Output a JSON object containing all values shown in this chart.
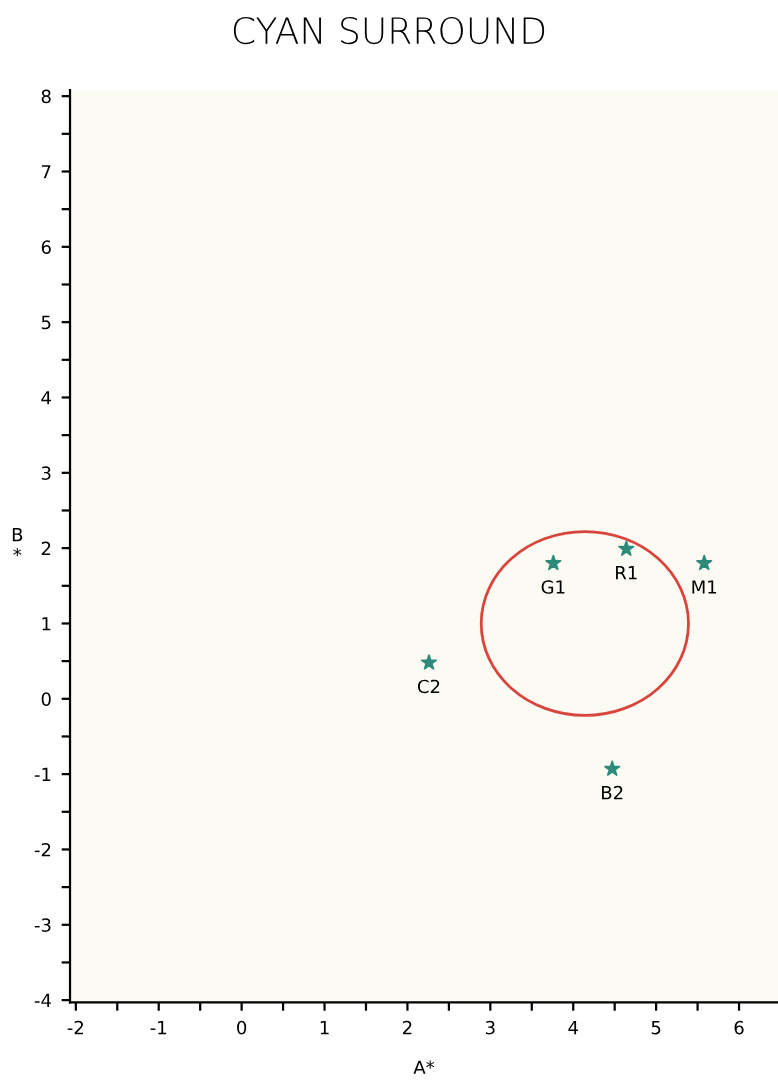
{
  "chart_data": {
    "type": "scatter",
    "title": "CYAN SURROUND",
    "xlabel": "A*",
    "ylabel": "B*",
    "xlim": [
      -2.07,
      6.47
    ],
    "ylim": [
      -4.03,
      8.08
    ],
    "xticks": [
      -2,
      {
        "value": -1.5,
        "label": null
      },
      -1,
      {
        "value": -0.5,
        "label": null
      },
      0,
      {
        "value": 0.5,
        "label": null
      },
      1,
      {
        "value": 1.5,
        "label": null
      },
      2,
      {
        "value": 2.5,
        "label": null
      },
      3,
      {
        "value": 3.5,
        "label": null
      },
      4,
      {
        "value": 4.5,
        "label": null
      },
      5,
      {
        "value": 5.5,
        "label": null
      },
      6
    ],
    "yticks": [
      -4,
      {
        "value": -3.5,
        "label": null
      },
      -3,
      {
        "value": -2.5,
        "label": null
      },
      -2,
      {
        "value": -1.5,
        "label": null
      },
      -1,
      {
        "value": -0.5,
        "label": null
      },
      0,
      {
        "value": 0.5,
        "label": null
      },
      1,
      {
        "value": 1.5,
        "label": null
      },
      2,
      {
        "value": 2.5,
        "label": null
      },
      3,
      {
        "value": 3.5,
        "label": null
      },
      4,
      {
        "value": 4.5,
        "label": null
      },
      5,
      {
        "value": 5.5,
        "label": null
      },
      6,
      {
        "value": 6.5,
        "label": null
      },
      7,
      {
        "value": 7.5,
        "label": null
      },
      8
    ],
    "grid": false,
    "legend": false,
    "marker": "star",
    "series": [
      {
        "color": "#2e8a7a",
        "x": [
          3.76,
          4.64,
          5.58,
          2.26,
          4.47
        ],
        "values": [
          1.8,
          1.99,
          1.8,
          0.48,
          -0.93
        ]
      }
    ],
    "annotations": [
      {
        "text": "G1",
        "x": 3.76,
        "y": 1.8
      },
      {
        "text": "R1",
        "x": 4.64,
        "y": 1.99
      },
      {
        "text": "M1",
        "x": 5.58,
        "y": 1.8
      },
      {
        "text": "C2",
        "x": 2.26,
        "y": 0.48
      },
      {
        "text": "B2",
        "x": 4.47,
        "y": -0.93
      }
    ]
  }
}
